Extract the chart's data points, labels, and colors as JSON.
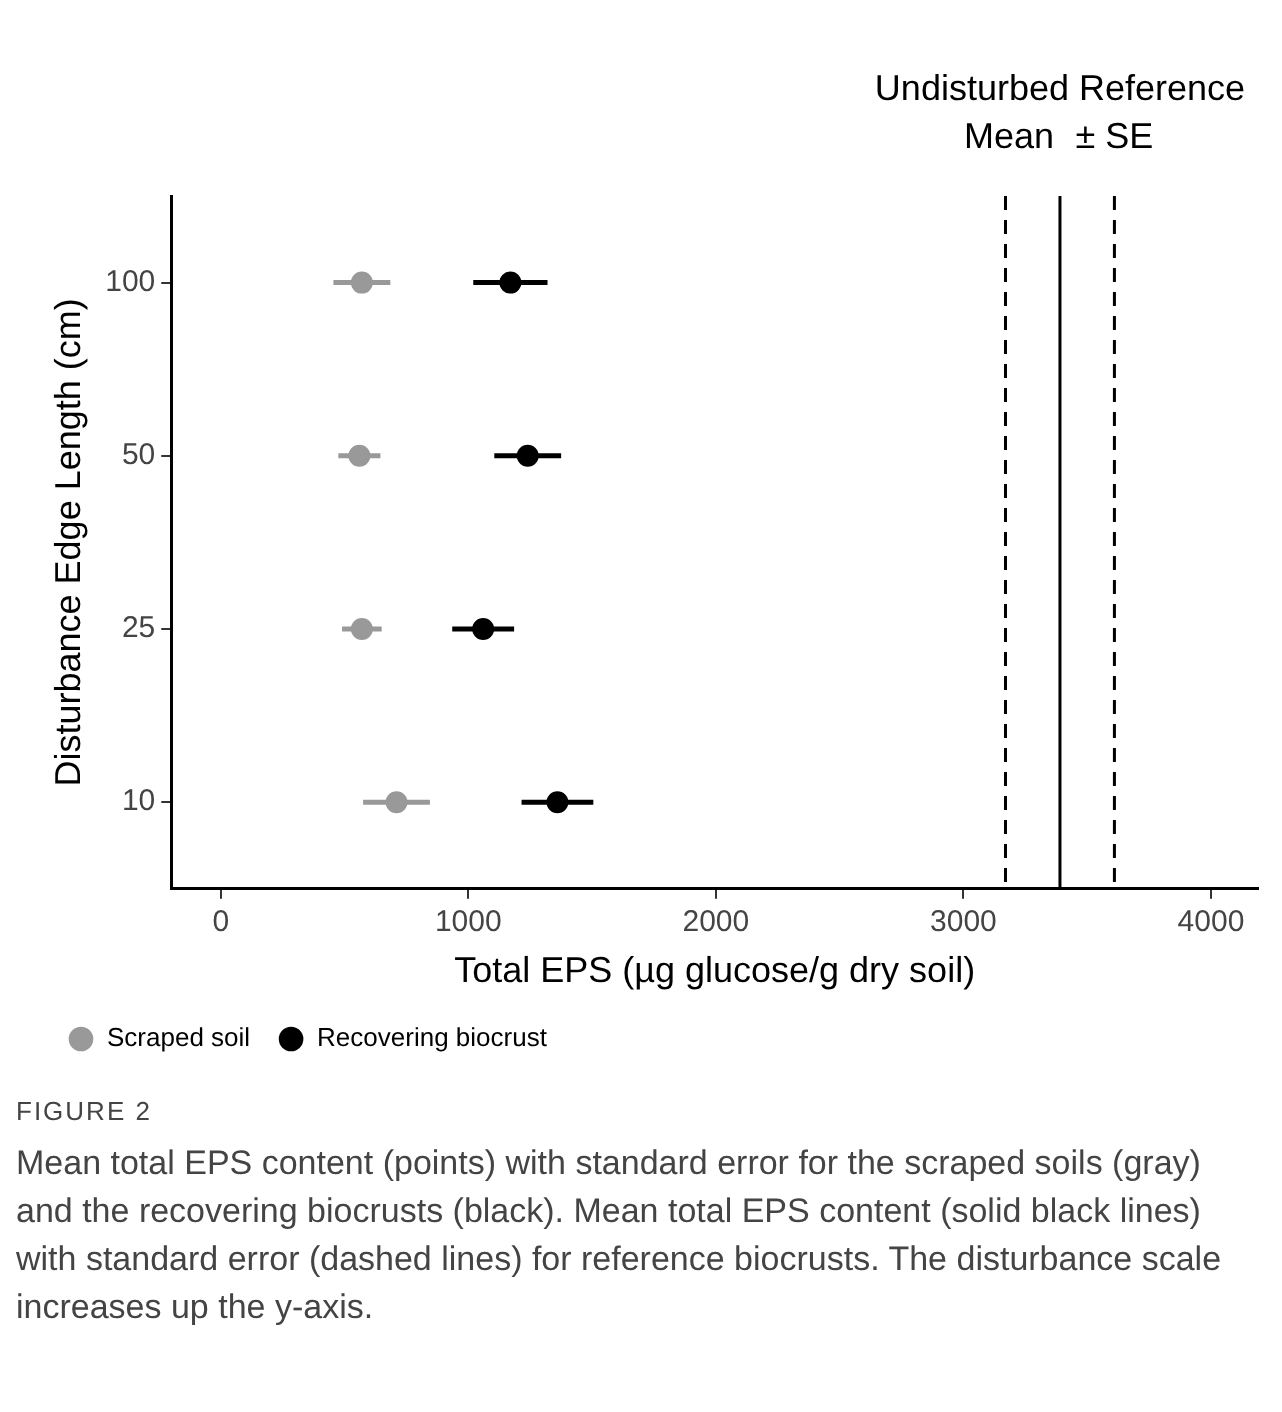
{
  "chart_data": {
    "type": "scatter",
    "orientation": "horizontal",
    "xlabel": "Total EPS (µg glucose/g dry soil)",
    "ylabel": "Disturbance Edge Length (cm)",
    "categories": [
      "100",
      "50",
      "25",
      "10"
    ],
    "series": [
      {
        "name": "Scraped soil",
        "color": "#999999",
        "values": [
          570,
          560,
          570,
          710
        ],
        "errors": [
          115,
          85,
          80,
          135
        ]
      },
      {
        "name": "Recovering biocrust",
        "color": "#000000",
        "values": [
          1170,
          1240,
          1060,
          1360
        ],
        "errors": [
          150,
          135,
          125,
          145
        ]
      }
    ],
    "xlim": [
      -200,
      4190
    ],
    "xticks": [
      0,
      1000,
      2000,
      3000,
      4000
    ],
    "grid": false,
    "legend": "bottom left",
    "marker": "circle",
    "ref_lines": [
      {
        "axis": "x",
        "value": 3170,
        "label": null,
        "line_style": "dashed",
        "color": "#000000"
      },
      {
        "axis": "x",
        "value": 3390,
        "label": "Mean",
        "line_style": "solid",
        "color": "#000000"
      },
      {
        "axis": "x",
        "value": 3610,
        "label": "± SE",
        "line_style": "dashed",
        "color": "#000000"
      }
    ],
    "annotations": [
      "Undisturbed Reference",
      "FIGURE 2",
      "Mean total EPS content (points) with standard error for the scraped soils (gray) and the recovering biocrusts (black). Mean total EPS content (solid black lines) with standard error (dashed lines) for reference biocrusts. The disturbance scale increases up the y-axis."
    ]
  }
}
